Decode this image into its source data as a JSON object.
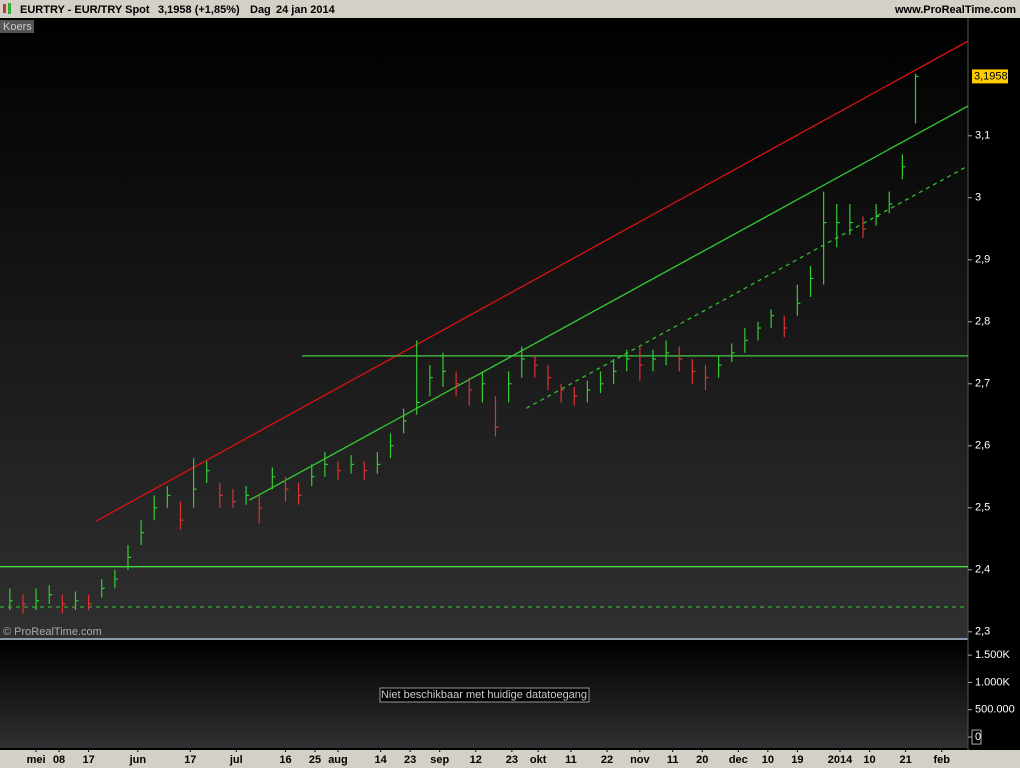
{
  "header": {
    "symbol": "EURTRY - EUR/TRY Spot",
    "quote": "3,1958 (+1,85%)",
    "period": "Dag",
    "date": "24 jan 2014",
    "site": "www.ProRealTime.com"
  },
  "chart_data": [
    {
      "type": "ohlc",
      "label": "Koers",
      "credit": "© ProRealTime.com",
      "x": [
        -8,
        -4,
        0,
        4,
        8,
        12,
        16,
        20,
        24,
        28,
        32,
        36,
        40,
        44,
        48,
        52,
        56,
        60,
        64,
        68,
        72,
        76,
        80,
        84,
        88,
        92,
        96,
        100,
        104,
        108,
        112,
        116,
        120,
        124,
        128,
        132,
        136,
        140,
        144,
        148,
        152,
        156,
        160,
        164,
        168,
        172,
        176,
        180,
        184,
        188,
        192,
        196,
        200,
        204,
        208,
        212,
        216,
        220,
        224,
        228,
        232,
        236,
        240,
        244,
        248,
        252,
        256,
        260,
        264,
        268
      ],
      "high": [
        2.37,
        2.36,
        2.37,
        2.375,
        2.36,
        2.365,
        2.36,
        2.385,
        2.4,
        2.44,
        2.48,
        2.52,
        2.535,
        2.51,
        2.58,
        2.575,
        2.54,
        2.53,
        2.535,
        2.52,
        2.565,
        2.55,
        2.54,
        2.57,
        2.59,
        2.575,
        2.585,
        2.575,
        2.59,
        2.62,
        2.66,
        2.77,
        2.73,
        2.75,
        2.72,
        2.71,
        2.72,
        2.68,
        2.72,
        2.76,
        2.745,
        2.73,
        2.7,
        2.695,
        2.705,
        2.72,
        2.74,
        2.755,
        2.76,
        2.755,
        2.77,
        2.76,
        2.74,
        2.73,
        2.745,
        2.765,
        2.79,
        2.8,
        2.82,
        2.81,
        2.86,
        2.89,
        3.01,
        2.99,
        2.99,
        2.97,
        2.99,
        3.01,
        3.07,
        3.2
      ],
      "low": [
        2.335,
        2.33,
        2.335,
        2.345,
        2.33,
        2.335,
        2.335,
        2.355,
        2.37,
        2.4,
        2.44,
        2.48,
        2.5,
        2.465,
        2.5,
        2.54,
        2.5,
        2.5,
        2.505,
        2.475,
        2.53,
        2.51,
        2.505,
        2.535,
        2.55,
        2.545,
        2.555,
        2.545,
        2.555,
        2.58,
        2.62,
        2.65,
        2.68,
        2.695,
        2.68,
        2.665,
        2.67,
        2.615,
        2.67,
        2.71,
        2.71,
        2.69,
        2.67,
        2.665,
        2.67,
        2.685,
        2.7,
        2.72,
        2.705,
        2.72,
        2.73,
        2.72,
        2.7,
        2.69,
        2.71,
        2.735,
        2.75,
        2.77,
        2.79,
        2.775,
        2.81,
        2.84,
        2.86,
        2.92,
        2.94,
        2.935,
        2.955,
        2.975,
        3.03,
        3.12
      ],
      "close": [
        2.35,
        2.345,
        2.35,
        2.36,
        2.345,
        2.35,
        2.345,
        2.37,
        2.385,
        2.42,
        2.46,
        2.5,
        2.52,
        2.48,
        2.53,
        2.56,
        2.52,
        2.51,
        2.52,
        2.5,
        2.55,
        2.53,
        2.52,
        2.55,
        2.57,
        2.56,
        2.57,
        2.56,
        2.57,
        2.6,
        2.64,
        2.67,
        2.71,
        2.72,
        2.7,
        2.69,
        2.7,
        2.63,
        2.7,
        2.74,
        2.73,
        2.71,
        2.69,
        2.68,
        2.69,
        2.7,
        2.72,
        2.74,
        2.73,
        2.74,
        2.75,
        2.74,
        2.72,
        2.71,
        2.73,
        2.75,
        2.77,
        2.79,
        2.81,
        2.79,
        2.83,
        2.87,
        2.96,
        2.96,
        2.96,
        2.95,
        2.97,
        2.99,
        3.05,
        3.1958
      ],
      "up_color": "#33cc33",
      "down_color": "#dd3333",
      "xlim": [
        -11,
        284
      ],
      "xticks": [
        {
          "value": 0,
          "label": "mei"
        },
        {
          "value": 7,
          "label": "08"
        },
        {
          "value": 16,
          "label": "17"
        },
        {
          "value": 31,
          "label": "jun"
        },
        {
          "value": 47,
          "label": "17"
        },
        {
          "value": 61,
          "label": "jul"
        },
        {
          "value": 76,
          "label": "16"
        },
        {
          "value": 85,
          "label": "25"
        },
        {
          "value": 92,
          "label": "aug"
        },
        {
          "value": 105,
          "label": "14"
        },
        {
          "value": 114,
          "label": "23"
        },
        {
          "value": 123,
          "label": "sep"
        },
        {
          "value": 134,
          "label": "12"
        },
        {
          "value": 145,
          "label": "23"
        },
        {
          "value": 153,
          "label": "okt"
        },
        {
          "value": 163,
          "label": "11"
        },
        {
          "value": 174,
          "label": "22"
        },
        {
          "value": 184,
          "label": "nov"
        },
        {
          "value": 194,
          "label": "11"
        },
        {
          "value": 203,
          "label": "20"
        },
        {
          "value": 214,
          "label": "dec"
        },
        {
          "value": 223,
          "label": "10"
        },
        {
          "value": 232,
          "label": "19"
        },
        {
          "value": 245,
          "label": "2014"
        },
        {
          "value": 254,
          "label": "10"
        },
        {
          "value": 265,
          "label": "21"
        },
        {
          "value": 276,
          "label": "feb"
        }
      ],
      "ylim": [
        2.29,
        3.29
      ],
      "yticks": [
        {
          "value": 2.3,
          "label": "2,3"
        },
        {
          "value": 2.4,
          "label": "2,4"
        },
        {
          "value": 2.5,
          "label": "2,5"
        },
        {
          "value": 2.6,
          "label": "2,6"
        },
        {
          "value": 2.7,
          "label": "2,7"
        },
        {
          "value": 2.8,
          "label": "2,8"
        },
        {
          "value": 2.9,
          "label": "2,9"
        },
        {
          "value": 3,
          "label": "3"
        },
        {
          "value": 3.1,
          "label": "3,1"
        }
      ],
      "price_tag": "3,1958",
      "price_tag_color": "#ffcc00",
      "lines": [
        {
          "x": [
            18.3,
            284
          ],
          "y": [
            2.4786,
            3.2527
          ],
          "color": "#dd1111",
          "style": "solid"
        },
        {
          "x": [
            65,
            284
          ],
          "y": [
            2.5124,
            3.148
          ],
          "color": "#33cc33",
          "style": "solid"
        },
        {
          "x": [
            81,
            284
          ],
          "y": [
            2.745,
            2.745
          ],
          "color": "#44cc44",
          "style": "solid"
        },
        {
          "x": [
            149.4,
            284
          ],
          "y": [
            2.6605,
            3.0515
          ],
          "color": "#33bb33",
          "style": "dashed"
        },
        {
          "x": [
            -11,
            284
          ],
          "y": [
            2.405,
            2.405
          ],
          "color": "#44dd44",
          "style": "solid"
        },
        {
          "x": [
            -11,
            284
          ],
          "y": [
            2.34,
            2.34
          ],
          "color": "#33aa33",
          "style": "dashed"
        }
      ]
    },
    {
      "type": "bar",
      "ylim": [
        -200000,
        1740000
      ],
      "yticks": [
        0,
        {
          "value": 500000,
          "label": "500.000"
        },
        {
          "value": 1000000,
          "label": "1.000K"
        },
        {
          "value": 1500000,
          "label": "1.500K"
        }
      ],
      "annotation": "Niet beschikbaar met huidige datatoegang"
    }
  ]
}
